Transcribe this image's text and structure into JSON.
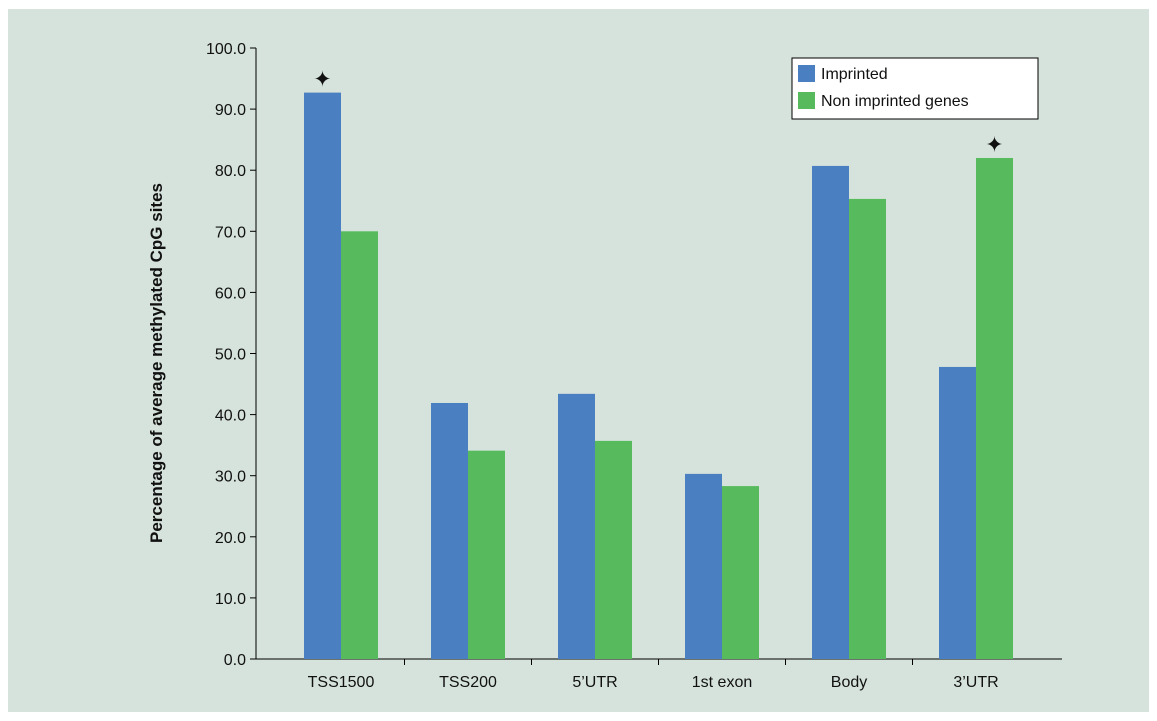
{
  "chart_data": {
    "type": "bar",
    "title": "",
    "xlabel": "",
    "ylabel": "Percentage of average methylated CpG sites",
    "ylim": [
      0,
      100
    ],
    "yticks": [
      "0.0",
      "10.0",
      "20.0",
      "30.0",
      "40.0",
      "50.0",
      "60.0",
      "70.0",
      "80.0",
      "90.0",
      "100.0"
    ],
    "categories": [
      "TSS1500",
      "TSS200",
      "5’UTR",
      "1st exon",
      "Body",
      "3’UTR"
    ],
    "series": [
      {
        "name": "Imprinted",
        "color": "#4a7fc1",
        "values": [
          92.7,
          41.9,
          43.4,
          30.3,
          80.7,
          47.8
        ]
      },
      {
        "name": "Non imprinted genes",
        "color": "#57bb5e",
        "values": [
          70.0,
          34.1,
          35.7,
          28.3,
          75.3,
          82.0
        ]
      }
    ],
    "annotations": [
      {
        "symbol": "✦",
        "category": "TSS1500",
        "series": "Imprinted"
      },
      {
        "symbol": "✦",
        "category": "3’UTR",
        "series": "Non imprinted genes"
      }
    ],
    "legend_position": "top-right",
    "grid": false
  }
}
